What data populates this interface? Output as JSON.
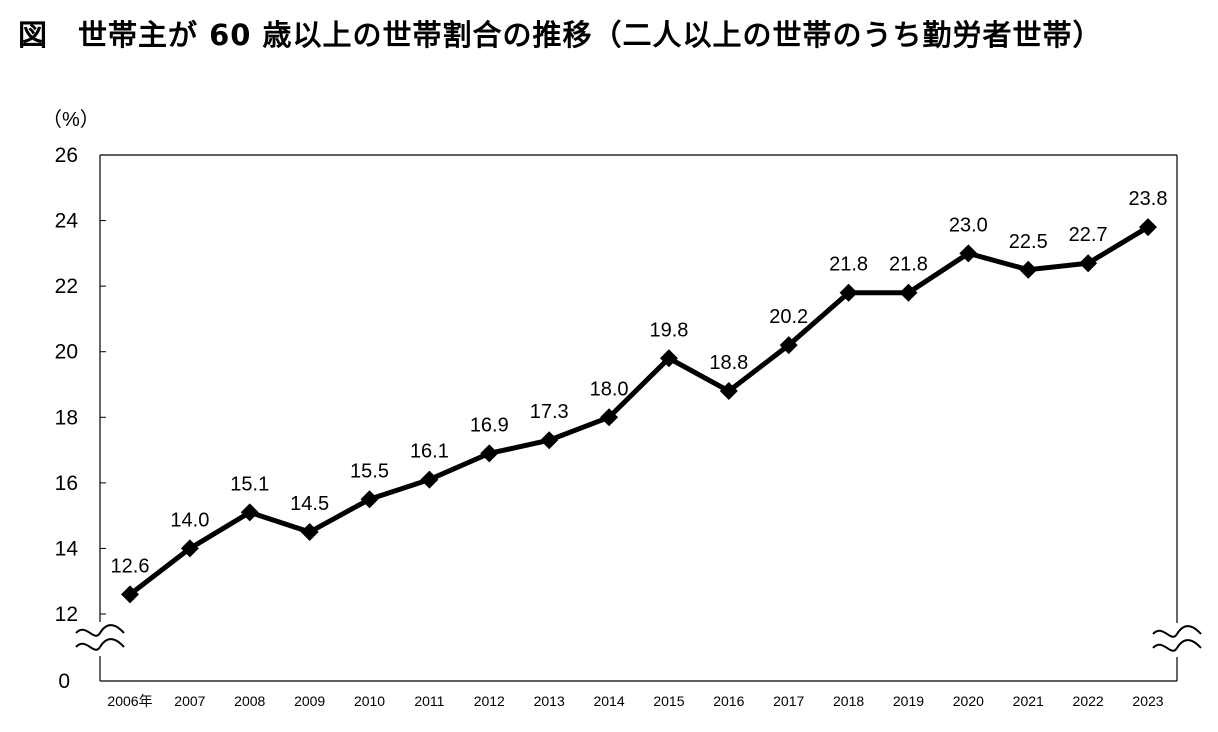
{
  "title": "図　世帯主が 60 歳以上の世帯割合の推移（二人以上の世帯のうち勤労者世帯）",
  "chart_data": {
    "type": "line",
    "title": "図　世帯主が 60 歳以上の世帯割合の推移（二人以上の世帯のうち勤労者世帯）",
    "ylabel": "（%）",
    "xlabel": "",
    "categories": [
      "2006年",
      "2007",
      "2008",
      "2009",
      "2010",
      "2011",
      "2012",
      "2013",
      "2014",
      "2015",
      "2016",
      "2017",
      "2018",
      "2019",
      "2020",
      "2021",
      "2022",
      "2023"
    ],
    "values": [
      12.6,
      14.0,
      15.1,
      14.5,
      15.5,
      16.1,
      16.9,
      17.3,
      18.0,
      19.8,
      18.8,
      20.2,
      21.8,
      21.8,
      23.0,
      22.5,
      22.7,
      23.8
    ],
    "data_labels": [
      "12.6",
      "14.0",
      "15.1",
      "14.5",
      "15.5",
      "16.1",
      "16.9",
      "17.3",
      "18.0",
      "19.8",
      "18.8",
      "20.2",
      "21.8",
      "21.8",
      "23.0",
      "22.5",
      "22.7",
      "23.8"
    ],
    "y_ticks": [
      12,
      14,
      16,
      18,
      20,
      22,
      24,
      26
    ],
    "y_tick_labels": [
      "12",
      "14",
      "16",
      "18",
      "20",
      "22",
      "24",
      "26"
    ],
    "y_origin_label": "0",
    "ylim": [
      12,
      26
    ],
    "axis_break": true,
    "grid": false,
    "marker": "diamond",
    "line_color": "#000000"
  }
}
